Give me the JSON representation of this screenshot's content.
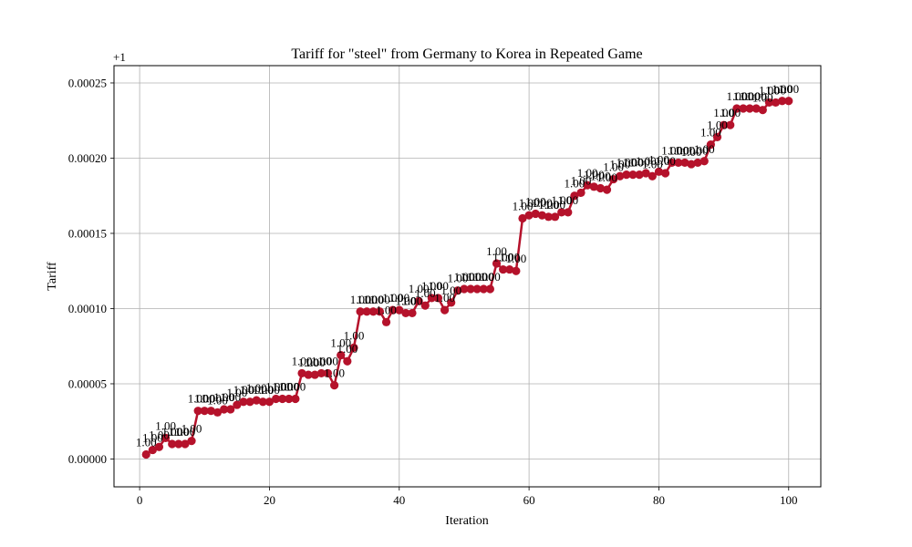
{
  "chart_data": {
    "type": "line",
    "title": "Tariff for \"steel\" from Germany to Korea in Repeated Game",
    "xlabel": "Iteration",
    "ylabel": "Tariff",
    "y_offset_label": "+1",
    "xlim": [
      -3.95,
      104.95
    ],
    "ylim": [
      -1.85e-05,
      0.0002615
    ],
    "x_ticks": [
      0,
      20,
      40,
      60,
      80,
      100
    ],
    "y_ticks": [
      0.0,
      5e-05,
      0.0001,
      0.00015,
      0.0002,
      0.00025
    ],
    "x_tick_labels": [
      "0",
      "20",
      "40",
      "60",
      "80",
      "100"
    ],
    "y_tick_labels": [
      "0.00000",
      "0.00005",
      "0.00010",
      "0.00015",
      "0.00020",
      "0.00025"
    ],
    "grid": true,
    "line_color": "#b5122b",
    "point_label": "1.00",
    "series": [
      {
        "x": [
          1,
          2,
          3,
          4,
          5,
          6,
          7,
          8,
          9,
          10,
          11,
          12,
          13,
          14,
          15,
          16,
          17,
          18,
          19,
          20,
          21,
          22,
          23,
          24,
          25,
          26,
          27,
          28,
          29,
          30,
          31,
          32,
          33,
          34,
          35,
          36,
          37,
          38,
          39,
          40,
          41,
          42,
          43,
          44,
          45,
          46,
          47,
          48,
          49,
          50,
          51,
          52,
          53,
          54,
          55,
          56,
          57,
          58,
          59,
          60,
          61,
          62,
          63,
          64,
          65,
          66,
          67,
          68,
          69,
          70,
          71,
          72,
          73,
          74,
          75,
          76,
          77,
          78,
          79,
          80,
          81,
          82,
          83,
          84,
          85,
          86,
          87,
          88,
          89,
          90,
          91,
          92,
          93,
          94,
          95,
          96,
          97,
          98,
          99,
          100
        ],
        "y": [
          3e-06,
          6e-06,
          8e-06,
          1.4e-05,
          1e-05,
          1e-05,
          1e-05,
          1.2e-05,
          3.2e-05,
          3.2e-05,
          3.2e-05,
          3.1e-05,
          3.3e-05,
          3.3e-05,
          3.6e-05,
          3.8e-05,
          3.8e-05,
          3.9e-05,
          3.8e-05,
          3.8e-05,
          4e-05,
          4e-05,
          4e-05,
          4e-05,
          5.7e-05,
          5.6e-05,
          5.6e-05,
          5.7e-05,
          5.7e-05,
          4.9e-05,
          6.9e-05,
          6.5e-05,
          7.4e-05,
          9.8e-05,
          9.8e-05,
          9.8e-05,
          9.8e-05,
          9.1e-05,
          9.9e-05,
          9.9e-05,
          9.7e-05,
          9.7e-05,
          0.000105,
          0.000102,
          0.000107,
          0.000107,
          9.9e-05,
          0.000104,
          0.000112,
          0.000113,
          0.000113,
          0.000113,
          0.000113,
          0.000113,
          0.00013,
          0.000126,
          0.000126,
          0.000125,
          0.00016,
          0.000162,
          0.000163,
          0.000162,
          0.000161,
          0.000161,
          0.000164,
          0.000164,
          0.000175,
          0.000177,
          0.000182,
          0.000181,
          0.00018,
          0.000179,
          0.000186,
          0.000188,
          0.000189,
          0.000189,
          0.000189,
          0.00019,
          0.000188,
          0.000191,
          0.00019,
          0.000197,
          0.000197,
          0.000197,
          0.000196,
          0.000197,
          0.000198,
          0.000209,
          0.000214,
          0.000222,
          0.000222,
          0.000233,
          0.000233,
          0.000233,
          0.000233,
          0.000232,
          0.000237,
          0.000237,
          0.000238,
          0.000238
        ]
      }
    ]
  }
}
